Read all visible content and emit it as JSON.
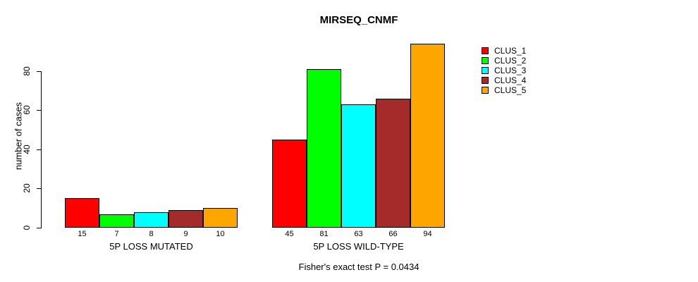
{
  "chart_data": {
    "type": "bar",
    "title": "MIRSEQ_CNMF",
    "ylabel": "number of cases",
    "footnote": "Fisher's exact test P = 0.0434",
    "categories": [
      "5P LOSS MUTATED",
      "5P LOSS WILD-TYPE"
    ],
    "series": [
      {
        "name": "CLUS_1",
        "color": "#FF0000",
        "values": [
          15,
          45
        ]
      },
      {
        "name": "CLUS_2",
        "color": "#00FF00",
        "values": [
          7,
          81
        ]
      },
      {
        "name": "CLUS_3",
        "color": "#00FFFF",
        "values": [
          8,
          63
        ]
      },
      {
        "name": "CLUS_4",
        "color": "#A52A2A",
        "values": [
          9,
          66
        ]
      },
      {
        "name": "CLUS_5",
        "color": "#FFA500",
        "values": [
          10,
          94
        ]
      }
    ],
    "bar_value_labels": {
      "5P LOSS MUTATED": [
        15,
        7,
        8,
        9,
        10
      ],
      "5P LOSS WILD-TYPE": [
        45,
        81,
        63,
        66,
        94
      ]
    },
    "y_ticks": [
      0,
      20,
      40,
      60,
      80
    ],
    "ylim": [
      0,
      94
    ],
    "grid": false,
    "legend_position": "right-outside",
    "bar_border_color": "#000000"
  }
}
